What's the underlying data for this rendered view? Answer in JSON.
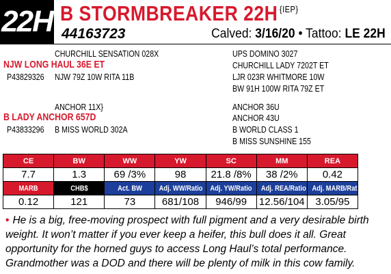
{
  "lot": "22H",
  "header": {
    "name": "B STORMBREAKER 22H",
    "tag": "{IEP}",
    "reg": "44163723",
    "calved_label": "Calved:",
    "calved": "3/16/20",
    "sep": "•",
    "tattoo_label": "Tattoo:",
    "tattoo": "LE 22H"
  },
  "pedigree": {
    "sire": "NJW LONG HAUL 36E ET",
    "sire_reg": "P43829326",
    "sire_sire": "CHURCHILL SENSATION 028X",
    "sire_dam": "NJW 79Z 10W RITA 11B",
    "dam": "B LADY ANCHOR 657D",
    "dam_reg": "P43833296",
    "dam_sire": "ANCHOR 11X}",
    "dam_dam": "B MISS WORLD 302A",
    "r1": "UPS DOMINO 3027",
    "r2": "CHURCHILL LADY 7202T ET",
    "r3": "LJR 023R WHITMORE 10W",
    "r4": "BW 91H 100W RITA 79Z ET",
    "r5": "ANCHOR 36U",
    "r6": "ANCHOR 43U",
    "r7": "B WORLD CLASS 1",
    "r8": "B MISS SUNSHINE 155"
  },
  "epd": {
    "row1_headers": [
      "CE",
      "BW",
      "WW",
      "YW",
      "SC",
      "MM",
      "REA"
    ],
    "row1_values": [
      "7.7",
      "1.3",
      "69 /3%",
      "98",
      "21.8 /8%",
      "38 /2%",
      "0.42"
    ],
    "row2_headers": [
      "MARB",
      "CHB$",
      "Act. BW",
      "Adj. WW/Ratio",
      "Adj. YW/Ratio",
      "Adj. REA/Ratio",
      "Adj. MARB/Ratio"
    ],
    "row2_values": [
      "0.12",
      "121",
      "73",
      "681/108",
      "946/99",
      "12.56/104",
      "3.05/95"
    ]
  },
  "comment": {
    "bullet": "•",
    "text": "He is a big, free-moving prospect with full pigment and a very desirable birth weight. It won’t matter if you ever keep a heifer, this bull does it all. Great opportunity for the horned guys to access Long Haul’s total performance. Grandmother was a DOD and there will be plenty of milk in this cow family."
  },
  "colors": {
    "red": "#d7192d",
    "blue": "#1d3f9b",
    "black": "#000000"
  }
}
